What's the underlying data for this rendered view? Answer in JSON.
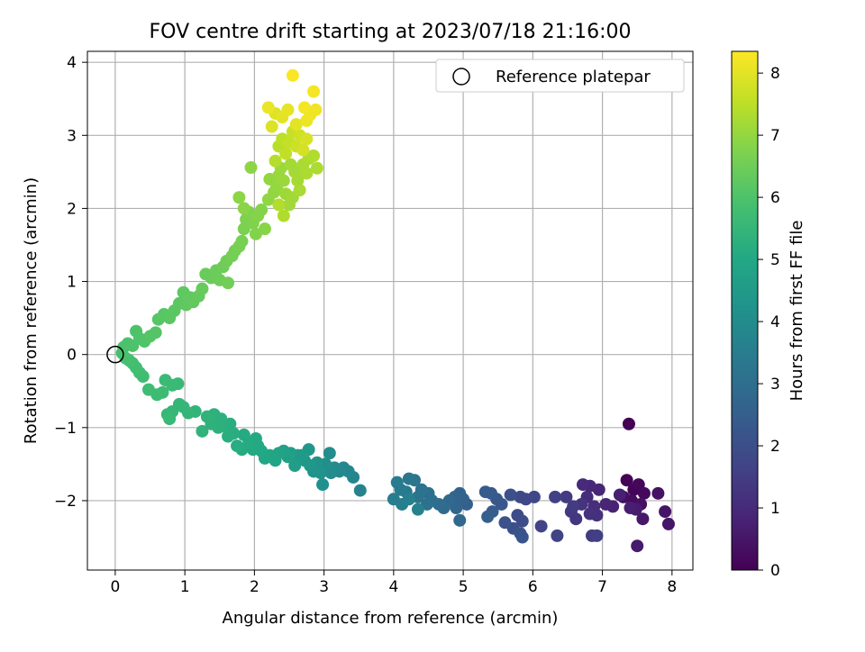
{
  "chart_data": {
    "type": "scatter",
    "title": "FOV centre drift starting at 2023/07/18 21:16:00",
    "xlabel": "Angular distance from reference (arcmin)",
    "ylabel": "Rotation from reference (arcmin)",
    "xlim": [
      -0.4,
      8.3
    ],
    "ylim": [
      -2.95,
      4.15
    ],
    "xticks": [
      "0",
      "1",
      "2",
      "3",
      "4",
      "5",
      "6",
      "7",
      "8"
    ],
    "yticks": [
      "−2",
      "−1",
      "0",
      "1",
      "2",
      "3",
      "4"
    ],
    "grid": true,
    "legend": {
      "position": "top-right",
      "entries": [
        "Reference platepar"
      ]
    },
    "reference_point": {
      "x": 0,
      "y": 0
    },
    "colorbar": {
      "label": "Hours from first FF file",
      "range": [
        0,
        8.35
      ],
      "ticks": [
        "0",
        "1",
        "2",
        "3",
        "4",
        "5",
        "6",
        "7",
        "8"
      ],
      "colormap": "viridis"
    },
    "points": [
      [
        7.38,
        -0.95,
        0.0
      ],
      [
        7.35,
        -1.72,
        0.05
      ],
      [
        7.45,
        -1.85,
        0.1
      ],
      [
        7.52,
        -1.78,
        0.15
      ],
      [
        7.6,
        -1.9,
        0.2
      ],
      [
        7.42,
        -2.0,
        0.25
      ],
      [
        7.3,
        -1.95,
        0.3
      ],
      [
        7.55,
        -2.05,
        0.35
      ],
      [
        7.8,
        -1.9,
        0.4
      ],
      [
        7.9,
        -2.15,
        0.45
      ],
      [
        7.95,
        -2.32,
        0.5
      ],
      [
        7.58,
        -2.25,
        0.55
      ],
      [
        7.5,
        -2.62,
        0.6
      ],
      [
        7.48,
        -2.12,
        0.65
      ],
      [
        7.4,
        -2.1,
        0.7
      ],
      [
        7.25,
        -1.92,
        0.75
      ],
      [
        7.15,
        -2.08,
        0.8
      ],
      [
        7.05,
        -2.05,
        0.85
      ],
      [
        6.95,
        -1.85,
        0.9
      ],
      [
        6.82,
        -1.8,
        0.95
      ],
      [
        6.72,
        -1.78,
        1.0
      ],
      [
        6.78,
        -1.95,
        1.05
      ],
      [
        6.88,
        -2.08,
        1.1
      ],
      [
        6.92,
        -2.2,
        1.15
      ],
      [
        6.82,
        -2.18,
        1.2
      ],
      [
        6.7,
        -2.05,
        1.25
      ],
      [
        6.62,
        -2.25,
        1.3
      ],
      [
        6.55,
        -2.15,
        1.35
      ],
      [
        6.48,
        -1.95,
        1.4
      ],
      [
        6.58,
        -2.08,
        1.45
      ],
      [
        6.85,
        -2.48,
        1.5
      ],
      [
        6.92,
        -2.48,
        1.55
      ],
      [
        6.32,
        -1.95,
        1.6
      ],
      [
        6.35,
        -2.48,
        1.65
      ],
      [
        6.12,
        -2.35,
        1.7
      ],
      [
        6.02,
        -1.95,
        1.75
      ],
      [
        5.9,
        -1.98,
        1.8
      ],
      [
        5.82,
        -1.95,
        1.85
      ],
      [
        5.78,
        -2.2,
        1.9
      ],
      [
        5.85,
        -2.28,
        1.95
      ],
      [
        5.72,
        -2.38,
        2.0
      ],
      [
        5.68,
        -1.92,
        2.05
      ],
      [
        5.6,
        -2.3,
        2.1
      ],
      [
        5.82,
        -2.45,
        2.15
      ],
      [
        5.85,
        -2.5,
        2.2
      ],
      [
        5.55,
        -2.05,
        2.25
      ],
      [
        5.48,
        -1.98,
        2.3
      ],
      [
        5.4,
        -1.9,
        2.35
      ],
      [
        5.32,
        -1.88,
        2.4
      ],
      [
        5.42,
        -2.15,
        2.45
      ],
      [
        5.35,
        -2.22,
        2.5
      ],
      [
        5.05,
        -2.05,
        2.55
      ],
      [
        5.0,
        -1.98,
        2.6
      ],
      [
        4.95,
        -1.9,
        2.65
      ],
      [
        4.88,
        -1.95,
        2.7
      ],
      [
        4.9,
        -2.1,
        2.75
      ],
      [
        4.95,
        -2.27,
        2.8
      ],
      [
        4.8,
        -2.0,
        2.85
      ],
      [
        4.72,
        -2.1,
        2.9
      ],
      [
        4.65,
        -2.05,
        2.95
      ],
      [
        4.55,
        -2.0,
        3.0
      ],
      [
        4.5,
        -1.9,
        3.05
      ],
      [
        4.48,
        -2.05,
        3.1
      ],
      [
        4.4,
        -1.85,
        3.15
      ],
      [
        4.35,
        -1.95,
        3.2
      ],
      [
        4.3,
        -1.72,
        3.25
      ],
      [
        4.22,
        -1.7,
        3.3
      ],
      [
        4.18,
        -1.88,
        3.35
      ],
      [
        4.1,
        -1.85,
        3.4
      ],
      [
        4.05,
        -1.75,
        3.45
      ],
      [
        4.0,
        -1.98,
        3.5
      ],
      [
        4.12,
        -2.05,
        3.55
      ],
      [
        4.22,
        -1.98,
        3.6
      ],
      [
        4.35,
        -2.12,
        3.65
      ],
      [
        3.52,
        -1.86,
        3.7
      ],
      [
        3.42,
        -1.68,
        3.75
      ],
      [
        3.35,
        -1.6,
        3.8
      ],
      [
        3.28,
        -1.55,
        3.85
      ],
      [
        3.22,
        -1.6,
        3.9
      ],
      [
        3.15,
        -1.55,
        3.95
      ],
      [
        3.1,
        -1.62,
        4.0
      ],
      [
        3.08,
        -1.35,
        4.05
      ],
      [
        3.02,
        -1.5,
        4.1
      ],
      [
        2.98,
        -1.78,
        4.15
      ],
      [
        2.95,
        -1.62,
        4.2
      ],
      [
        2.9,
        -1.48,
        4.25
      ],
      [
        2.85,
        -1.6,
        4.3
      ],
      [
        2.8,
        -1.52,
        4.35
      ],
      [
        2.78,
        -1.3,
        4.4
      ],
      [
        2.72,
        -1.45,
        4.45
      ],
      [
        2.68,
        -1.38,
        4.5
      ],
      [
        2.62,
        -1.38,
        4.55
      ],
      [
        2.58,
        -1.52,
        4.6
      ],
      [
        2.52,
        -1.35,
        4.65
      ],
      [
        2.48,
        -1.4,
        4.7
      ],
      [
        2.42,
        -1.32,
        4.75
      ],
      [
        2.35,
        -1.35,
        4.8
      ],
      [
        2.3,
        -1.45,
        4.85
      ],
      [
        2.22,
        -1.38,
        4.9
      ],
      [
        2.15,
        -1.42,
        4.95
      ],
      [
        2.1,
        -1.32,
        5.0
      ],
      [
        2.05,
        -1.25,
        5.0
      ],
      [
        2.02,
        -1.15,
        5.05
      ],
      [
        1.98,
        -1.3,
        5.05
      ],
      [
        1.92,
        -1.2,
        5.1
      ],
      [
        1.85,
        -1.1,
        5.1
      ],
      [
        1.82,
        -1.3,
        5.12
      ],
      [
        1.75,
        -1.25,
        5.15
      ],
      [
        1.7,
        -1.08,
        5.18
      ],
      [
        1.65,
        -0.95,
        5.2
      ],
      [
        1.62,
        -1.12,
        5.22
      ],
      [
        1.55,
        -0.98,
        5.25
      ],
      [
        1.52,
        -0.88,
        5.28
      ],
      [
        1.48,
        -1.0,
        5.3
      ],
      [
        1.42,
        -0.82,
        5.32
      ],
      [
        1.38,
        -0.95,
        5.35
      ],
      [
        1.32,
        -0.85,
        5.38
      ],
      [
        1.25,
        -1.05,
        5.4
      ],
      [
        1.15,
        -0.78,
        5.42
      ],
      [
        1.05,
        -0.8,
        5.45
      ],
      [
        0.98,
        -0.72,
        5.48
      ],
      [
        0.92,
        -0.68,
        5.5
      ],
      [
        0.82,
        -0.78,
        5.52
      ],
      [
        0.75,
        -0.82,
        5.55
      ],
      [
        0.78,
        -0.88,
        5.58
      ],
      [
        0.9,
        -0.4,
        5.6
      ],
      [
        0.82,
        -0.42,
        5.62
      ],
      [
        0.72,
        -0.35,
        5.65
      ],
      [
        0.68,
        -0.52,
        5.68
      ],
      [
        0.6,
        -0.55,
        5.7
      ],
      [
        0.48,
        -0.48,
        5.72
      ],
      [
        0.4,
        -0.3,
        5.75
      ],
      [
        0.35,
        -0.25,
        5.78
      ],
      [
        0.3,
        -0.18,
        5.8
      ],
      [
        0.25,
        -0.12,
        5.82
      ],
      [
        0.2,
        -0.08,
        5.85
      ],
      [
        0.15,
        -0.05,
        5.88
      ],
      [
        0.1,
        0.02,
        5.9
      ],
      [
        0.12,
        0.1,
        5.92
      ],
      [
        0.18,
        0.15,
        5.95
      ],
      [
        0.25,
        0.12,
        5.98
      ],
      [
        0.3,
        0.32,
        6.0
      ],
      [
        0.35,
        0.22,
        6.02
      ],
      [
        0.42,
        0.18,
        6.05
      ],
      [
        0.5,
        0.25,
        6.08
      ],
      [
        0.58,
        0.3,
        6.1
      ],
      [
        0.62,
        0.48,
        6.12
      ],
      [
        0.7,
        0.55,
        6.15
      ],
      [
        0.78,
        0.5,
        6.18
      ],
      [
        0.85,
        0.6,
        6.2
      ],
      [
        0.92,
        0.7,
        6.22
      ],
      [
        0.98,
        0.85,
        6.25
      ],
      [
        1.02,
        0.68,
        6.28
      ],
      [
        1.08,
        0.78,
        6.3
      ],
      [
        1.12,
        0.72,
        6.32
      ],
      [
        1.2,
        0.8,
        6.35
      ],
      [
        1.25,
        0.9,
        6.38
      ],
      [
        1.3,
        1.1,
        6.4
      ],
      [
        1.38,
        1.05,
        6.42
      ],
      [
        1.45,
        1.15,
        6.45
      ],
      [
        1.5,
        1.02,
        6.48
      ],
      [
        1.55,
        1.2,
        6.5
      ],
      [
        1.6,
        1.28,
        6.52
      ],
      [
        1.62,
        0.98,
        6.55
      ],
      [
        1.68,
        1.35,
        6.58
      ],
      [
        1.72,
        1.42,
        6.6
      ],
      [
        1.78,
        1.48,
        6.62
      ],
      [
        1.82,
        1.55,
        6.65
      ],
      [
        1.85,
        1.72,
        6.68
      ],
      [
        1.88,
        1.85,
        6.7
      ],
      [
        1.92,
        1.95,
        6.72
      ],
      [
        1.98,
        1.8,
        6.75
      ],
      [
        2.02,
        1.65,
        6.78
      ],
      [
        2.05,
        1.9,
        6.8
      ],
      [
        2.1,
        1.98,
        6.82
      ],
      [
        2.15,
        1.72,
        6.85
      ],
      [
        1.85,
        2.0,
        6.88
      ],
      [
        1.78,
        2.15,
        6.9
      ],
      [
        1.95,
        2.56,
        6.92
      ],
      [
        2.2,
        2.12,
        6.95
      ],
      [
        2.22,
        2.4,
        6.98
      ],
      [
        2.28,
        2.22,
        7.0
      ],
      [
        2.32,
        2.3,
        7.02
      ],
      [
        2.35,
        2.45,
        7.05
      ],
      [
        2.38,
        2.55,
        7.08
      ],
      [
        2.42,
        2.38,
        7.1
      ],
      [
        2.45,
        2.2,
        7.12
      ],
      [
        2.5,
        2.05,
        7.15
      ],
      [
        2.55,
        2.15,
        7.18
      ],
      [
        2.58,
        2.5,
        7.2
      ],
      [
        2.62,
        2.38,
        7.22
      ],
      [
        2.65,
        2.25,
        7.25
      ],
      [
        2.7,
        2.6,
        7.28
      ],
      [
        2.75,
        2.48,
        7.3
      ],
      [
        2.78,
        2.68,
        7.32
      ],
      [
        2.42,
        1.9,
        7.35
      ],
      [
        2.35,
        2.05,
        7.38
      ],
      [
        2.3,
        2.65,
        7.4
      ],
      [
        2.35,
        2.85,
        7.45
      ],
      [
        2.4,
        2.95,
        7.5
      ],
      [
        2.45,
        2.75,
        7.55
      ],
      [
        2.5,
        2.9,
        7.6
      ],
      [
        2.55,
        3.05,
        7.65
      ],
      [
        2.6,
        2.85,
        7.7
      ],
      [
        2.65,
        3.0,
        7.75
      ],
      [
        2.7,
        2.8,
        7.8
      ],
      [
        2.75,
        2.95,
        7.85
      ],
      [
        2.25,
        3.12,
        7.9
      ],
      [
        2.3,
        3.3,
        7.95
      ],
      [
        2.4,
        3.25,
        8.0
      ],
      [
        2.48,
        3.35,
        8.05
      ],
      [
        2.2,
        3.38,
        8.1
      ],
      [
        2.75,
        3.2,
        8.12
      ],
      [
        2.8,
        3.28,
        8.15
      ],
      [
        2.88,
        3.35,
        8.18
      ],
      [
        2.72,
        3.38,
        8.2
      ],
      [
        2.85,
        3.6,
        8.25
      ],
      [
        2.55,
        3.82,
        8.3
      ],
      [
        2.6,
        3.15,
        8.0
      ],
      [
        2.52,
        2.6,
        7.2
      ],
      [
        2.85,
        2.72,
        7.35
      ],
      [
        2.9,
        2.55,
        7.3
      ]
    ]
  }
}
